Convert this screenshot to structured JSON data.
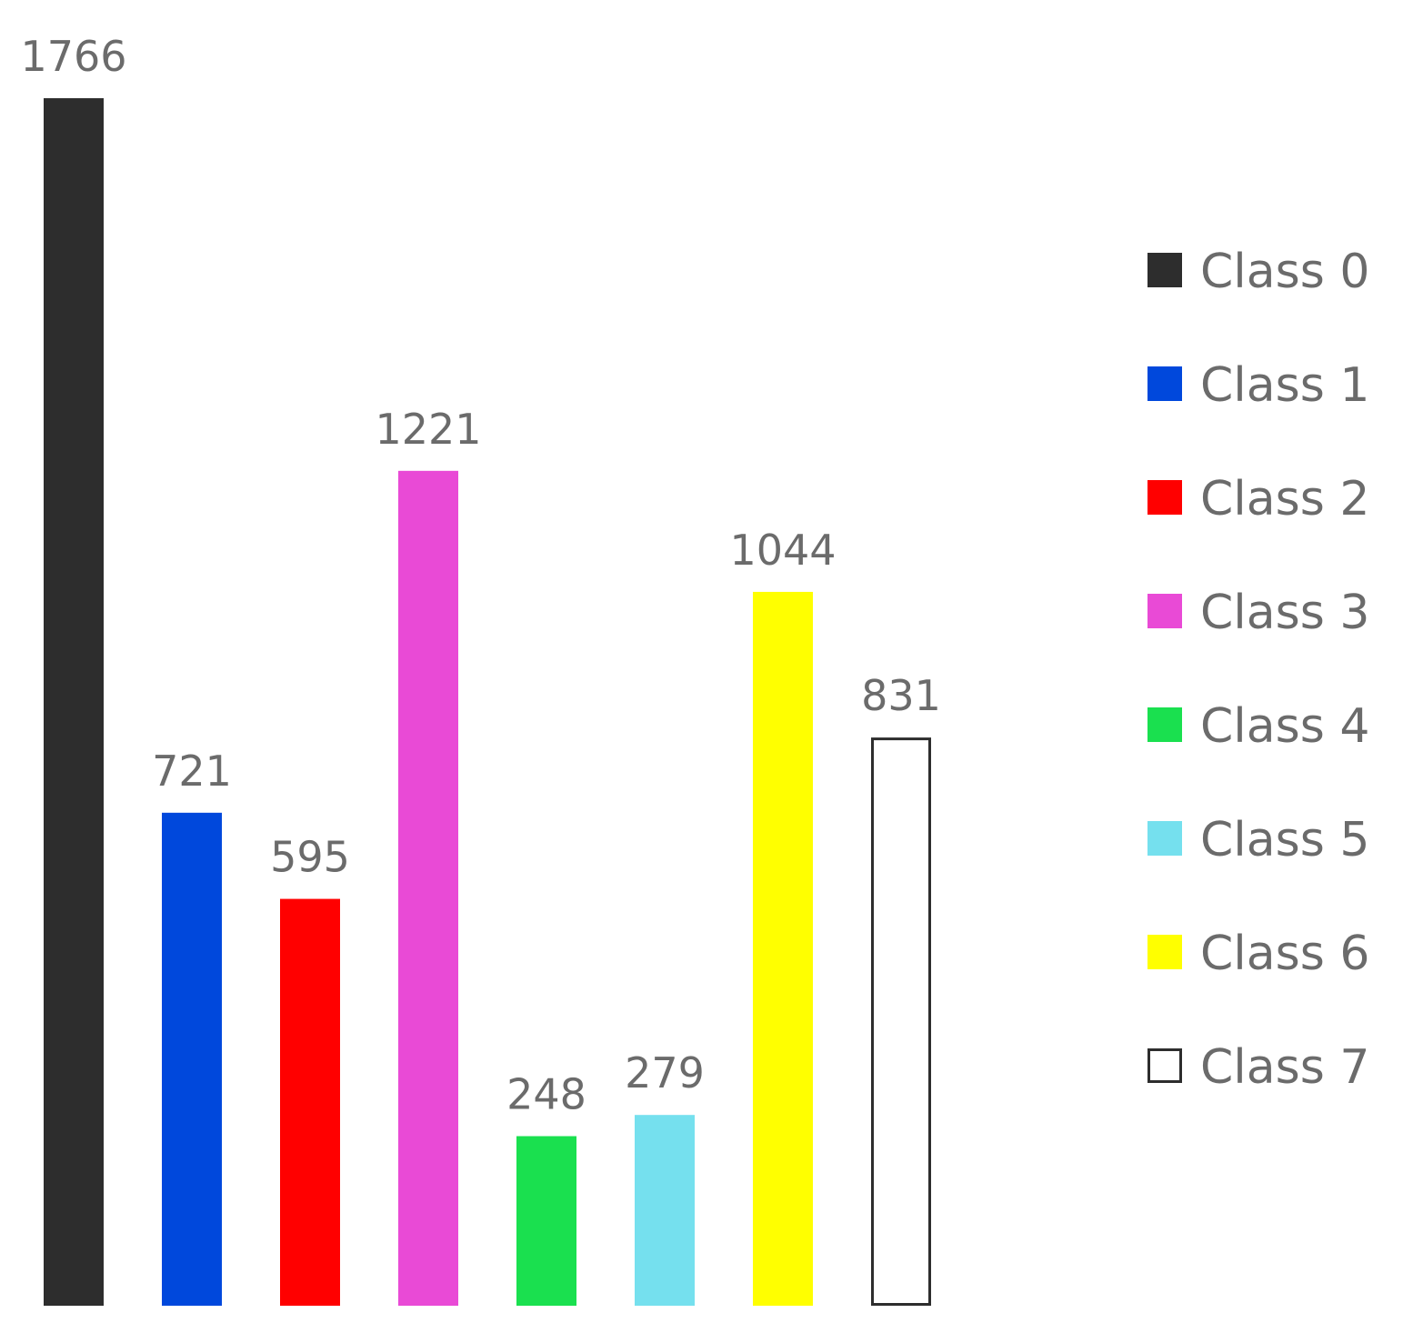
{
  "chart_data": {
    "type": "bar",
    "title": "",
    "xlabel": "",
    "ylabel": "",
    "categories": [
      "Class 0",
      "Class 1",
      "Class 2",
      "Class 3",
      "Class 4",
      "Class 5",
      "Class 6",
      "Class 7"
    ],
    "values": [
      1766,
      721,
      595,
      1221,
      248,
      279,
      1044,
      831
    ],
    "ylim": [
      0,
      1766
    ],
    "grid": false,
    "axes_visible": false,
    "legend_position": "right",
    "colors": [
      "#2d2d2d",
      "#0048dc",
      "#ff0000",
      "#e94ad6",
      "#1ae04f",
      "#75e0ee",
      "#ffff00",
      "#ffffff"
    ],
    "outline_colors": [
      "none",
      "none",
      "none",
      "none",
      "none",
      "none",
      "none",
      "#2d2d2d"
    ],
    "legend": [
      "Class 0",
      "Class 1",
      "Class 2",
      "Class 3",
      "Class 4",
      "Class 5",
      "Class 6",
      "Class 7"
    ]
  }
}
